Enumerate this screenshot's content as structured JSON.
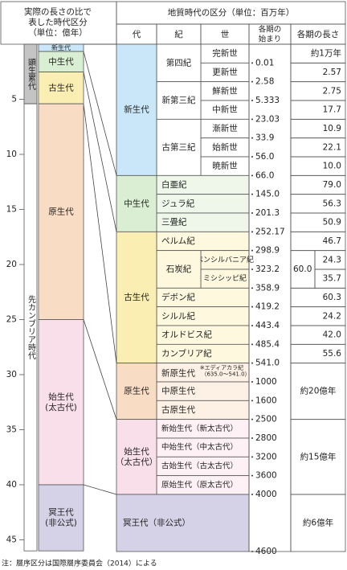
{
  "left": {
    "title": [
      "実際の長さの比で",
      "表した時代区分",
      "（単位：億年）"
    ],
    "ticks": [
      5,
      10,
      15,
      20,
      25,
      30,
      35,
      40,
      45
    ],
    "eons": [
      {
        "name": "顕生累代",
        "color": "#c4c4c4"
      },
      {
        "name": "先カンブリア時代",
        "color": "#ffffff"
      }
    ],
    "bands": [
      {
        "lines": [
          "新生代"
        ]
      },
      {
        "lines": [
          "中生代"
        ]
      },
      {
        "lines": [
          "古生代"
        ]
      },
      {
        "lines": [
          "原生代"
        ]
      },
      {
        "lines": [
          "始生代",
          "(太古代)"
        ]
      },
      {
        "lines": [
          "冥王代",
          "(非公式)"
        ]
      }
    ]
  },
  "table": {
    "title": "地質時代の区分（単位：百万年）",
    "headers": [
      "代",
      "紀",
      "世"
    ],
    "start_header": [
      "各期の",
      "始まり"
    ],
    "length_header": "各期の長さ",
    "eras": [
      {
        "name": [
          "新生代"
        ],
        "color": "#c9e7f8",
        "tint": "#ffffff",
        "periods": [
          {
            "name": "第四紀",
            "epochs": [
              {
                "name": "完新世",
                "start": "0.01",
                "length": "約1万年"
              },
              {
                "name": "更新世",
                "start": "2.58",
                "length": "2.57"
              }
            ]
          },
          {
            "name": "新第三紀",
            "epochs": [
              {
                "name": "鮮新世",
                "start": "5.333",
                "length": "2.75"
              },
              {
                "name": "中新世",
                "start": "23.03",
                "length": "17.7"
              }
            ]
          },
          {
            "name": "古第三紀",
            "epochs": [
              {
                "name": "漸新世",
                "start": "33.9",
                "length": "10.9"
              },
              {
                "name": "始新世",
                "start": "56.0",
                "length": "22.1"
              },
              {
                "name": "暁新世",
                "start": "66.0",
                "length": "10.0"
              }
            ]
          }
        ]
      },
      {
        "name": [
          "中生代"
        ],
        "color": "#d9eed2",
        "tint": "#eef7ea",
        "periods": [
          {
            "name": "白亜紀",
            "start": "145.0",
            "length": "79.0"
          },
          {
            "name": "ジュラ紀",
            "start": "201.3",
            "length": "56.3"
          },
          {
            "name": "三畳紀",
            "start": "252.17",
            "length": "50.9"
          }
        ]
      },
      {
        "name": [
          "古生代"
        ],
        "color": "#faeeb2",
        "tint": "#fdf8de",
        "periods": [
          {
            "name": "ペルム紀",
            "start": "298.9",
            "length": "46.7"
          },
          {
            "name": "石炭紀",
            "length": "60.0",
            "epochs": [
              {
                "name": "ペンシルバニア紀",
                "start": "323.2",
                "length": "24.3"
              },
              {
                "name": "ミシシッピ紀",
                "start": "358.9",
                "length": "35.7"
              }
            ]
          },
          {
            "name": "デボン紀",
            "start": "419.2",
            "length": "60.3"
          },
          {
            "name": "シルル紀",
            "start": "443.4",
            "length": "24.2"
          },
          {
            "name": "オルドビス紀",
            "start": "485.4",
            "length": "42.0"
          },
          {
            "name": "カンブリア紀",
            "start": "541.0",
            "length": "55.6"
          }
        ]
      },
      {
        "name": [
          "原生代"
        ],
        "color": "#f9dcc4",
        "tint": "#fdf0e5",
        "length": "約20億年",
        "periods": [
          {
            "name": "新原生代",
            "note": [
              "※エディアカラ紀",
              "（635.0〜541.0）"
            ],
            "start": "1000"
          },
          {
            "name": "中原生代",
            "start": "1600"
          },
          {
            "name": "古原生代",
            "start": "2500"
          }
        ]
      },
      {
        "name": [
          "始生代",
          "（太古代）"
        ],
        "color": "#f9dfe9",
        "tint": "#fdf1f5",
        "length": "約15億年",
        "periods": [
          {
            "name": "新始生代（新太古代）",
            "start": "2800"
          },
          {
            "name": "中始生代（中太古代）",
            "start": "3200"
          },
          {
            "name": "古始生代（古太古代）",
            "start": "3600"
          },
          {
            "name": "原始生代（原太古代）",
            "start": "4000"
          }
        ]
      },
      {
        "name": [
          "冥王代（非公式）"
        ],
        "color": "#d5d2e8",
        "start": "4600",
        "length": "約6億年"
      }
    ]
  },
  "note": "注：層序区分は国際層序委員会（2014）による"
}
